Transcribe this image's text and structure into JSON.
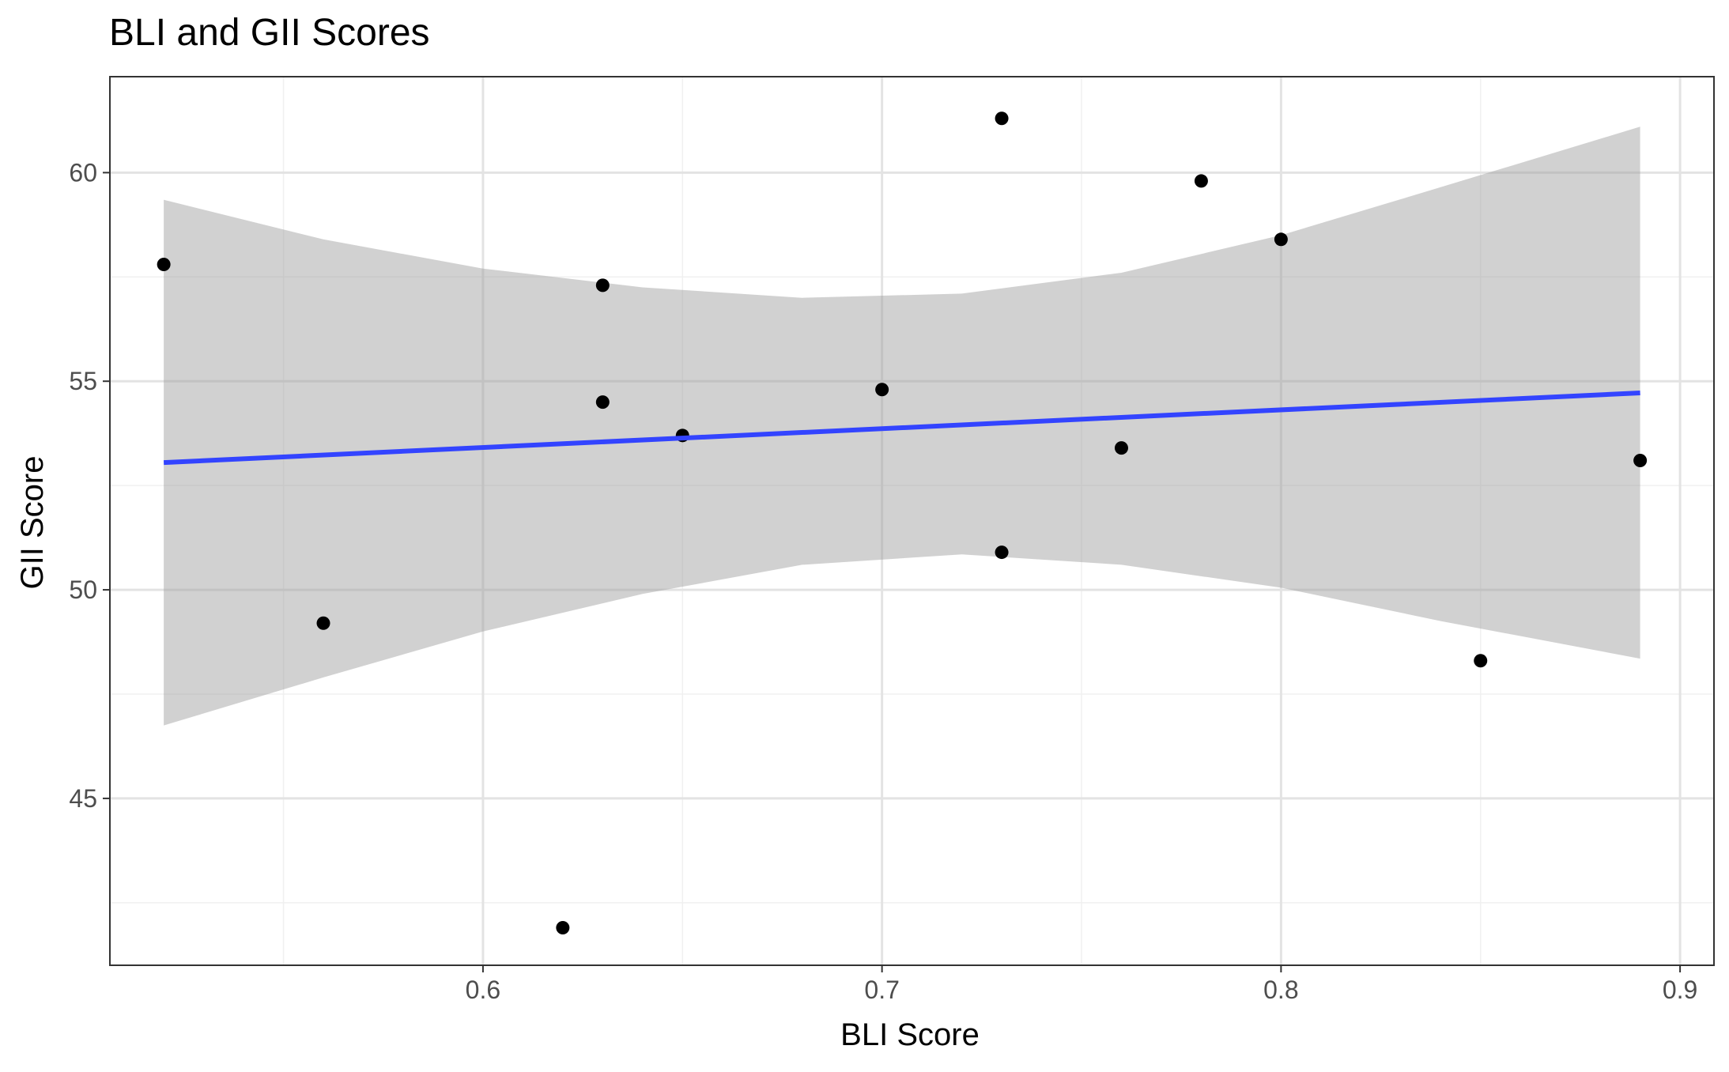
{
  "chart_data": {
    "type": "scatter",
    "title": "BLI and GII Scores",
    "xlabel": "BLI Score",
    "ylabel": "GII Score",
    "xlim": [
      0.5065,
      0.9085
    ],
    "ylim": [
      41.0,
      62.3
    ],
    "x_ticks": [
      0.6,
      0.7,
      0.8,
      0.9
    ],
    "x_tick_labels": [
      "0.6",
      "0.7",
      "0.8",
      "0.9"
    ],
    "x_minor_ticks": [
      0.55,
      0.65,
      0.75,
      0.85
    ],
    "y_ticks": [
      45,
      50,
      55,
      60
    ],
    "y_tick_labels": [
      "45",
      "50",
      "55",
      "60"
    ],
    "y_minor_ticks": [
      42.5,
      47.5,
      52.5,
      57.5
    ],
    "grid": true,
    "points": [
      {
        "x": 0.52,
        "y": 57.8
      },
      {
        "x": 0.56,
        "y": 49.2
      },
      {
        "x": 0.62,
        "y": 41.9
      },
      {
        "x": 0.63,
        "y": 57.3
      },
      {
        "x": 0.63,
        "y": 54.5
      },
      {
        "x": 0.65,
        "y": 53.7
      },
      {
        "x": 0.7,
        "y": 54.8
      },
      {
        "x": 0.73,
        "y": 61.3
      },
      {
        "x": 0.73,
        "y": 50.9
      },
      {
        "x": 0.76,
        "y": 53.4
      },
      {
        "x": 0.78,
        "y": 59.8
      },
      {
        "x": 0.8,
        "y": 58.4
      },
      {
        "x": 0.85,
        "y": 48.3
      },
      {
        "x": 0.89,
        "y": 53.1
      }
    ],
    "regression": {
      "method": "lm",
      "x_range": [
        0.52,
        0.89
      ],
      "y_start": 53.05,
      "y_end": 54.72
    },
    "confidence_band": [
      {
        "x": 0.52,
        "upper": 59.35,
        "lower": 46.75
      },
      {
        "x": 0.56,
        "upper": 58.4,
        "lower": 47.9
      },
      {
        "x": 0.6,
        "upper": 57.7,
        "lower": 49.0
      },
      {
        "x": 0.64,
        "upper": 57.25,
        "lower": 49.9
      },
      {
        "x": 0.68,
        "upper": 57.0,
        "lower": 50.6
      },
      {
        "x": 0.72,
        "upper": 57.1,
        "lower": 50.85
      },
      {
        "x": 0.76,
        "upper": 57.6,
        "lower": 50.6
      },
      {
        "x": 0.8,
        "upper": 58.5,
        "lower": 50.05
      },
      {
        "x": 0.84,
        "upper": 59.65,
        "lower": 49.25
      },
      {
        "x": 0.89,
        "upper": 61.1,
        "lower": 48.35
      }
    ],
    "colors": {
      "points": "#000000",
      "line": "#3344ff",
      "band": "#999999",
      "grid_major": "#e3e3e3",
      "grid_minor": "#f0f0f0",
      "panel_border": "#333333",
      "tick_text": "#4d4d4d",
      "title_text": "#000000"
    }
  }
}
